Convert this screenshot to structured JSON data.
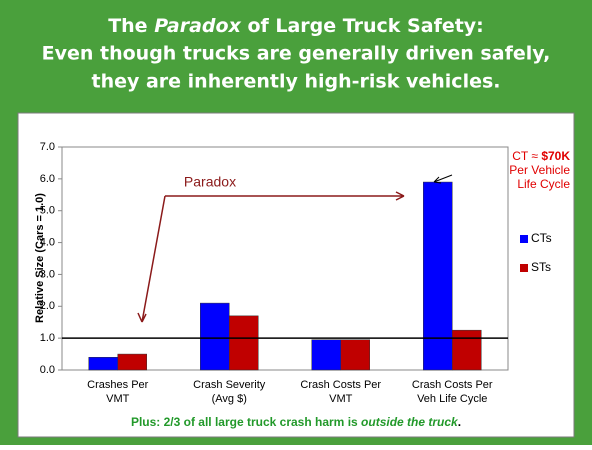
{
  "header": {
    "line1": [
      "The ",
      "Paradox",
      " of Large Truck Safety:"
    ],
    "line2": "Even though trucks are generally driven safely,",
    "line3": "they are inherently high-risk vehicles."
  },
  "chart_data": {
    "type": "bar",
    "y_axis_label": "Relative Size (Cars = 1.0)",
    "categories": [
      [
        "Crashes Per",
        "VMT"
      ],
      [
        "Crash Severity",
        "(Avg $)"
      ],
      [
        "Crash Costs Per",
        "VMT"
      ],
      [
        "Crash Costs Per",
        "Veh Life Cycle"
      ]
    ],
    "series": [
      {
        "name": "CTs",
        "color": "#0000ff",
        "values": [
          0.4,
          2.1,
          0.95,
          5.9
        ]
      },
      {
        "name": "STs",
        "color": "#c00000",
        "values": [
          0.5,
          1.7,
          0.95,
          1.25
        ]
      }
    ],
    "reference_line": 1.0,
    "ylim": [
      0,
      7
    ],
    "yticks": [
      {
        "value": 0,
        "label": "0.0"
      },
      {
        "value": 1,
        "label": "1.0"
      },
      {
        "value": 2,
        "label": "2.0"
      },
      {
        "value": 3,
        "label": "3.0"
      },
      {
        "value": 4,
        "label": "4.0"
      },
      {
        "value": 5,
        "label": "5.0"
      },
      {
        "value": 6,
        "label": "6.0"
      },
      {
        "value": 7,
        "label": "7.0"
      }
    ],
    "legend": "right",
    "annotations": {
      "paradox": "Paradox",
      "cost": [
        "CT ≈ ",
        "$70K"
      ],
      "cost_line2": "Per Vehicle",
      "cost_line3": "Life Cycle"
    }
  },
  "footer": [
    "Plus:  2/3 of all large truck crash harm is ",
    "outside the truck",
    "."
  ]
}
